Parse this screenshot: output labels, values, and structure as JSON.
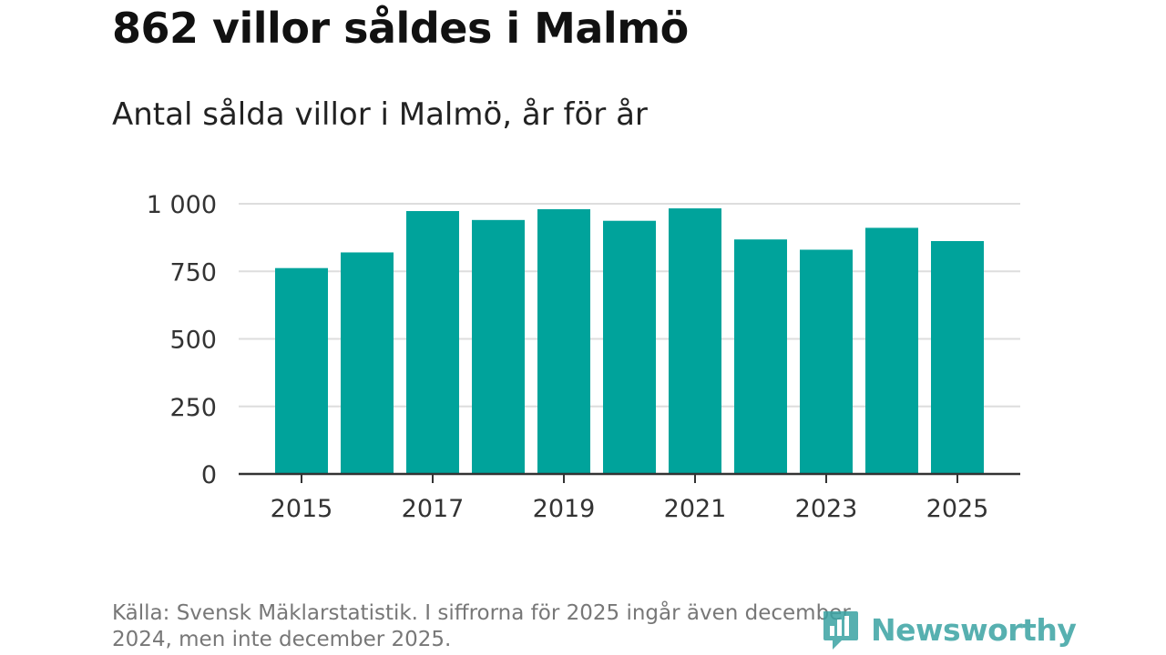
{
  "header": {
    "title": "862 villor såldes i Malmö",
    "subtitle": "Antal sålda villor i Malmö, år för år"
  },
  "footer": {
    "source": "Källa: Svensk Mäklarstatistik. I siffrorna för 2025 ingår även december 2024, men inte december 2025.",
    "logo_text": "Newsworthy"
  },
  "colors": {
    "bar": "#00a39b",
    "grid": "#dddddd",
    "axis": "#333333",
    "logo": "#3aa3a3"
  },
  "chart_data": {
    "type": "bar",
    "title": "862 villor såldes i Malmö",
    "subtitle": "Antal sålda villor i Malmö, år för år",
    "xlabel": "",
    "ylabel": "",
    "categories": [
      "2015",
      "2016",
      "2017",
      "2018",
      "2019",
      "2020",
      "2021",
      "2022",
      "2023",
      "2024",
      "2025"
    ],
    "values": [
      762,
      820,
      973,
      940,
      980,
      937,
      983,
      868,
      830,
      911,
      862
    ],
    "x_tick_labels": [
      "2015",
      "2017",
      "2019",
      "2021",
      "2023",
      "2025"
    ],
    "y_ticks": [
      0,
      250,
      500,
      750,
      1000
    ],
    "y_tick_labels": [
      "0",
      "250",
      "500",
      "750",
      "1 000"
    ],
    "ylim": [
      0,
      1000
    ],
    "grid": true,
    "legend": "none"
  }
}
